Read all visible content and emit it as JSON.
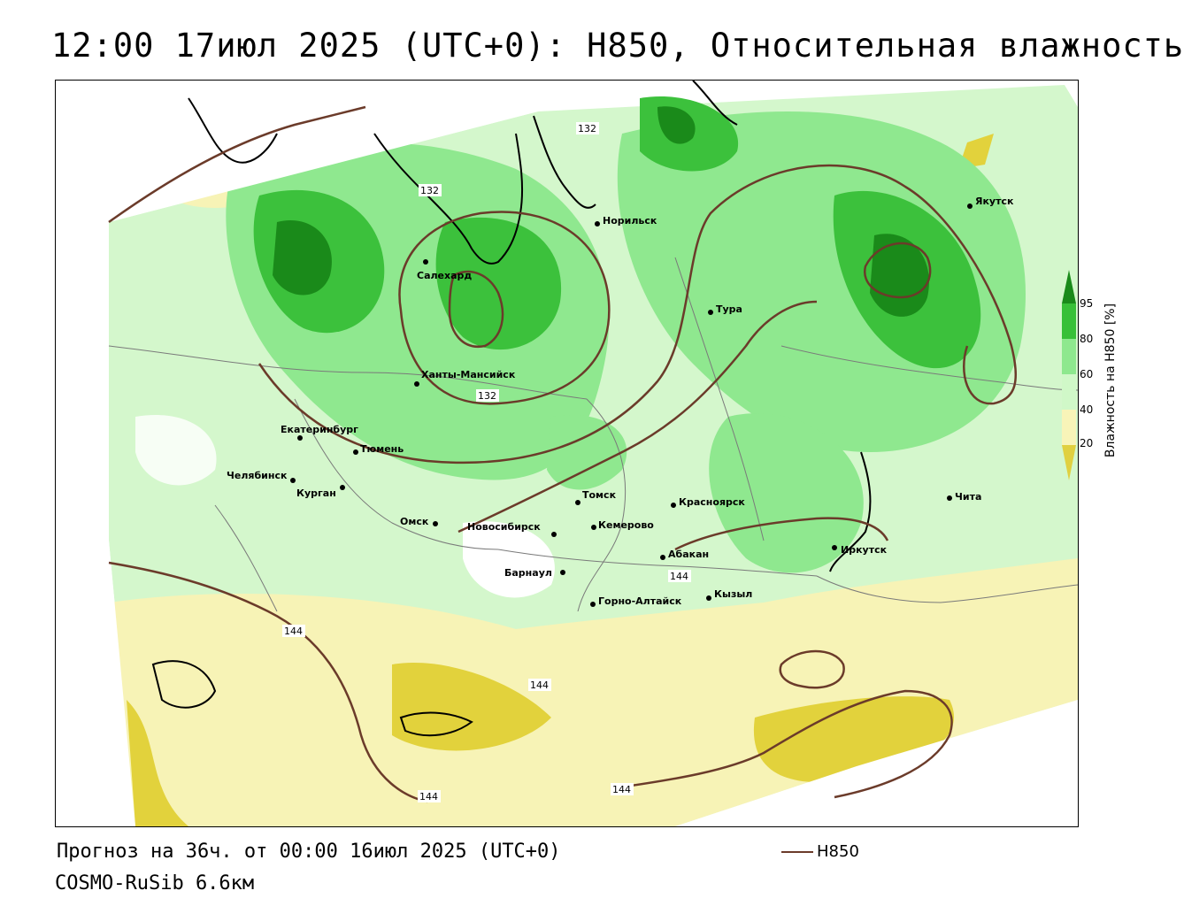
{
  "header": {
    "title": "12:00 17июл 2025 (UTC+0): H850, Относительная влажность"
  },
  "footer": {
    "forecast": "Прогноз на 36ч. от 00:00 16июл 2025 (UTC+0)",
    "model": "COSMO-RuSib 6.6км",
    "contour_legend": "H850"
  },
  "colorbar": {
    "title": "Влажность на H850 [%]",
    "ticks": [
      "95",
      "80",
      "60",
      "40",
      "20"
    ],
    "colors": {
      "very_wet": "#1a8a1a",
      "wet": "#38c038",
      "moist": "#8ee88e",
      "light": "#d0f8c8",
      "dry": "#f8f4b8",
      "very_dry": "#e0d040"
    }
  },
  "contour_color": "#6b3b2a",
  "cities": [
    {
      "name": "Якутск"
    },
    {
      "name": "Норильск"
    },
    {
      "name": "Салехард"
    },
    {
      "name": "Тура"
    },
    {
      "name": "Ханты-Мансийск"
    },
    {
      "name": "Екатеринбург"
    },
    {
      "name": "Тюмень"
    },
    {
      "name": "Челябинск"
    },
    {
      "name": "Курган"
    },
    {
      "name": "Омск"
    },
    {
      "name": "Новосибирск"
    },
    {
      "name": "Томск"
    },
    {
      "name": "Кемерово"
    },
    {
      "name": "Красноярск"
    },
    {
      "name": "Абакан"
    },
    {
      "name": "Барнаул"
    },
    {
      "name": "Горно-Алтайск"
    },
    {
      "name": "Кызыл"
    },
    {
      "name": "Иркутск"
    },
    {
      "name": "Чита"
    }
  ],
  "contour_labels": [
    "132",
    "132",
    "132",
    "144",
    "144",
    "144",
    "144",
    "144"
  ]
}
